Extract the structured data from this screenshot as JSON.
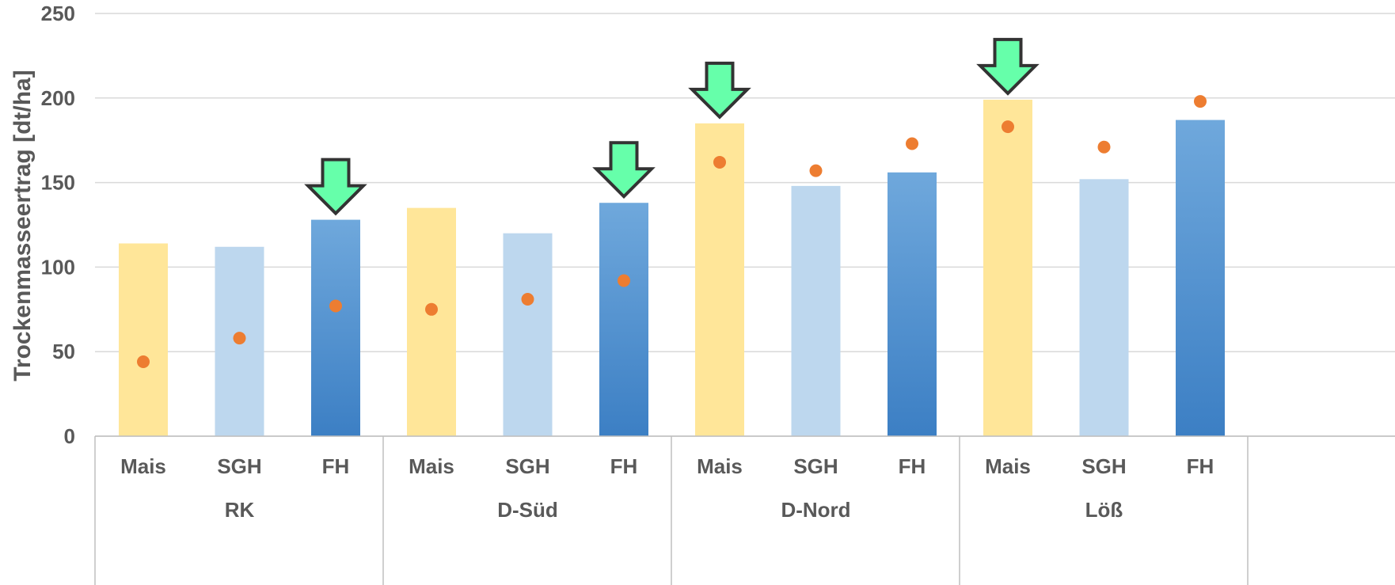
{
  "chart_data": {
    "type": "bar",
    "title": "",
    "xlabel": "",
    "ylabel": "Trockenmasseertrag [dt/ha]",
    "ylim": [
      0,
      250
    ],
    "yticks": [
      0,
      50,
      100,
      150,
      200,
      250
    ],
    "grid": true,
    "groups": [
      "RK",
      "D-Süd",
      "D-Nord",
      "Löß"
    ],
    "categories": [
      "Mais",
      "SGH",
      "FH"
    ],
    "series": [
      {
        "kind": "bar",
        "values": [
          [
            114,
            112,
            128
          ],
          [
            135,
            120,
            138
          ],
          [
            185,
            148,
            156
          ],
          [
            199,
            152,
            187
          ]
        ]
      },
      {
        "kind": "point",
        "values": [
          [
            44,
            58,
            77
          ],
          [
            75,
            81,
            92
          ],
          [
            162,
            157,
            173
          ],
          [
            183,
            171,
            198
          ]
        ]
      }
    ],
    "annotations": [
      {
        "type": "down-arrow",
        "group": "RK",
        "category": "FH"
      },
      {
        "type": "down-arrow",
        "group": "D-Süd",
        "category": "FH"
      },
      {
        "type": "down-arrow",
        "group": "D-Nord",
        "category": "Mais"
      },
      {
        "type": "down-arrow",
        "group": "Löß",
        "category": "Mais"
      }
    ]
  },
  "colors": {
    "Mais": "#FFE699",
    "SGH": "#BDD7EE",
    "FH_top": "#6FA8DC",
    "FH_bottom": "#3C7FC4",
    "point": "#ED7D31",
    "arrow_fill": "#66FFAA",
    "arrow_stroke": "#333333",
    "grid": "#D9D9D9",
    "text": "#595959"
  }
}
